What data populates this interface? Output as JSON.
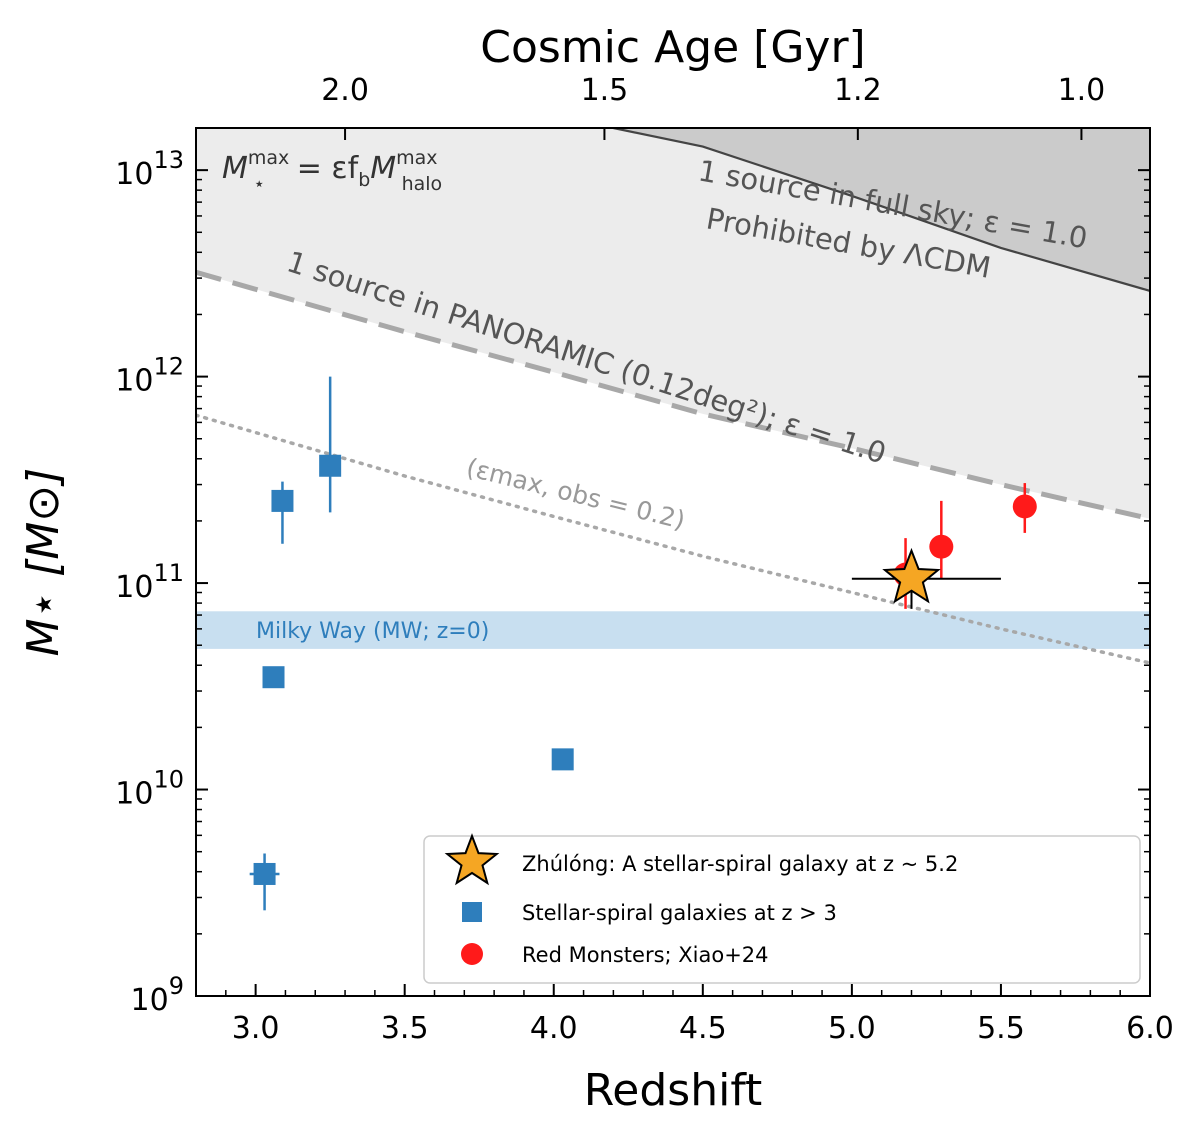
{
  "chart_data": {
    "type": "scatter",
    "xlabel": "Redshift",
    "ylabel": "M⋆ [M⊙]",
    "top_axis_label": "Cosmic Age [Gyr]",
    "xlim": [
      2.8,
      6.0
    ],
    "ylim": [
      1000000000.0,
      16000000000000.0
    ],
    "yscale": "log",
    "x_ticks": [
      "3.0",
      "3.5",
      "4.0",
      "4.5",
      "5.0",
      "5.5",
      "6.0"
    ],
    "y_ticks": [
      {
        "base": "10",
        "exp": "9"
      },
      {
        "base": "10",
        "exp": "10"
      },
      {
        "base": "10",
        "exp": "11"
      },
      {
        "base": "10",
        "exp": "12"
      },
      {
        "base": "10",
        "exp": "13"
      }
    ],
    "top_ticks": [
      {
        "label": "2.0",
        "z": 3.3
      },
      {
        "label": "1.5",
        "z": 4.17
      },
      {
        "label": "1.2",
        "z": 5.02
      },
      {
        "label": "1.0",
        "z": 5.77
      }
    ],
    "curves": {
      "lcdm_full_sky": {
        "label": "1 source in full sky; ε = 1.0",
        "points": [
          [
            4.2,
            16000000000000.0
          ],
          [
            4.5,
            13000000000000.0
          ],
          [
            5.0,
            7500000000000.0
          ],
          [
            5.5,
            4200000000000.0
          ],
          [
            6.0,
            2600000000000.0
          ]
        ]
      },
      "panoramic": {
        "label": "1 source in PANORAMIC (0.12deg²); ε = 1.0",
        "points": [
          [
            2.8,
            3200000000000.0
          ],
          [
            3.5,
            1650000000000.0
          ],
          [
            4.0,
            1050000000000.0
          ],
          [
            4.5,
            660000000000.0
          ],
          [
            5.0,
            450000000000.0
          ],
          [
            5.5,
            300000000000.0
          ],
          [
            6.0,
            205000000000.0
          ]
        ]
      },
      "eps_obs": {
        "label": "(εmax, obs = 0.2)",
        "points": [
          [
            2.8,
            650000000000.0
          ],
          [
            3.5,
            330000000000.0
          ],
          [
            4.0,
            210000000000.0
          ],
          [
            4.5,
            135000000000.0
          ],
          [
            5.0,
            90000000000.0
          ],
          [
            5.5,
            60000000000.0
          ],
          [
            6.0,
            41000000000.0
          ]
        ]
      }
    },
    "milky_way_band": {
      "label": "Milky Way (MW; z=0)",
      "ymin": 48000000000.0,
      "ymax": 73000000000.0,
      "color": "#c8dff0"
    },
    "zhulong": [
      {
        "z": 5.2,
        "mass": 105000000000.0,
        "xerr": [
          5.0,
          5.5
        ],
        "yerr": [
          75000000000.0,
          140000000000.0
        ]
      }
    ],
    "spirals": [
      {
        "z": 3.09,
        "mass": 250000000000.0,
        "ylo": 155000000000.0,
        "yhi": 310000000000.0
      },
      {
        "z": 3.25,
        "mass": 370000000000.0,
        "ylo": 220000000000.0,
        "yhi": 1000000000000.0
      },
      {
        "z": 3.06,
        "mass": 35000000000.0
      },
      {
        "z": 4.03,
        "mass": 14000000000.0
      },
      {
        "z": 3.03,
        "mass": 3900000000.0,
        "ylo": 2600000000.0,
        "yhi": 4900000000.0,
        "xlo": 2.98,
        "xhi": 3.08
      }
    ],
    "red_monsters": [
      {
        "z": 5.18,
        "mass": 110000000000.0,
        "ylo": 75000000000.0,
        "yhi": 165000000000.0
      },
      {
        "z": 5.3,
        "mass": 150000000000.0,
        "ylo": 105000000000.0,
        "yhi": 250000000000.0
      },
      {
        "z": 5.58,
        "mass": 235000000000.0,
        "ylo": 175000000000.0,
        "yhi": 305000000000.0
      }
    ],
    "colors": {
      "spiral": "#2e7ebc",
      "red": "#ff1a1a",
      "star": "#f5a623",
      "prohibited": "#ececec",
      "full_sky_region": "#cbcbcb",
      "curve": "#a8a8a8"
    },
    "annotations": {
      "formula": "M⋆max = εfbMhalomax",
      "prohibited": "Prohibited by ΛCDM"
    },
    "legend": {
      "position": "lower right",
      "entries": [
        "Zhúlóng: A stellar-spiral galaxy at z ~ 5.2",
        "Stellar-spiral galaxies at z > 3",
        "Red Monsters; Xiao+24"
      ]
    }
  }
}
